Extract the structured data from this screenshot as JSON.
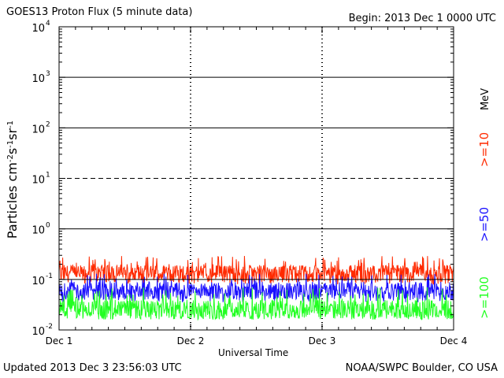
{
  "header": {
    "title": "GOES13 Proton Flux (5 minute data)",
    "begin": "Begin: 2013 Dec 1 0000 UTC"
  },
  "footer": {
    "updated": "Updated 2013 Dec  3 23:56:03 UTC",
    "credit": "NOAA/SWPC Boulder, CO USA"
  },
  "chart_data": {
    "type": "line",
    "title": "GOES13 Proton Flux (5 minute data)",
    "xlabel": "Universal Time",
    "ylabel": "Particles cm-2s-1sr-1",
    "y_scale": "log",
    "ylim": [
      0.01,
      10000
    ],
    "xlim": [
      0,
      3
    ],
    "x_ticks": [
      {
        "value": 0,
        "label": "Dec 1"
      },
      {
        "value": 1,
        "label": "Dec 2"
      },
      {
        "value": 2,
        "label": "Dec 3"
      },
      {
        "value": 3,
        "label": "Dec 4"
      }
    ],
    "y_ticks": [
      {
        "value": 0.01,
        "base": "10",
        "exp": "-2"
      },
      {
        "value": 0.1,
        "base": "10",
        "exp": "-1"
      },
      {
        "value": 1,
        "base": "10",
        "exp": "0"
      },
      {
        "value": 10,
        "base": "10",
        "exp": "1"
      },
      {
        "value": 100,
        "base": "10",
        "exp": "2"
      },
      {
        "value": 1000,
        "base": "10",
        "exp": "3"
      },
      {
        "value": 10000,
        "base": "10",
        "exp": "4"
      }
    ],
    "reference_lines": [
      {
        "value": 10,
        "style": "dashed"
      },
      {
        "value": 1,
        "style": "solid"
      },
      {
        "value": 100,
        "style": "solid"
      },
      {
        "value": 1000,
        "style": "solid"
      },
      {
        "value": 0.1,
        "style": "solid"
      }
    ],
    "series": [
      {
        "name": ">=10 MeV",
        "legend": ">=10",
        "color": "#ff2a00",
        "typical": 0.13,
        "low": 0.08,
        "high": 0.3
      },
      {
        "name": ">=50 MeV",
        "legend": ">=50",
        "color": "#1a10ff",
        "typical": 0.06,
        "low": 0.035,
        "high": 0.13
      },
      {
        "name": ">=100 MeV",
        "legend": ">=100",
        "color": "#22ff22",
        "typical": 0.025,
        "low": 0.016,
        "high": 0.07
      }
    ],
    "legend_unit": "MeV"
  }
}
